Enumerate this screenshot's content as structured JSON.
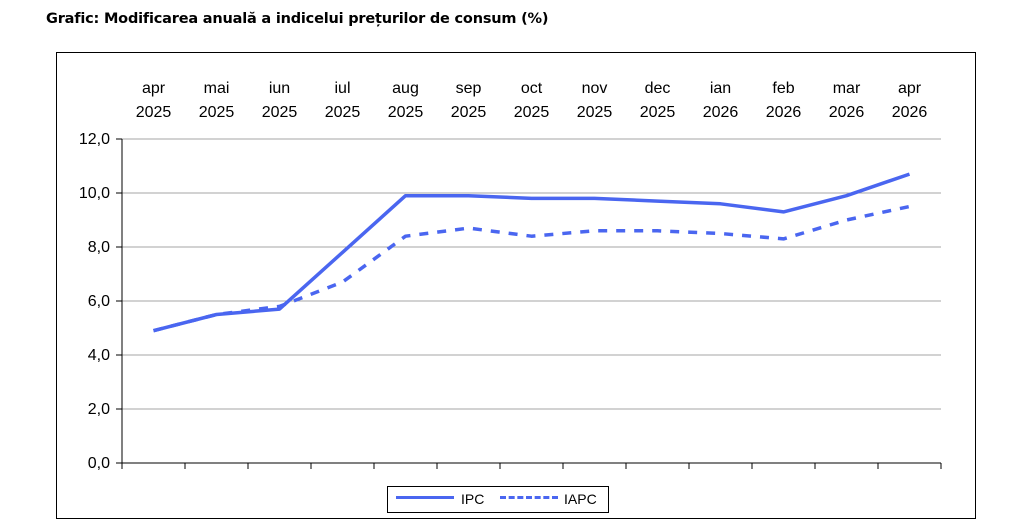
{
  "title": "Grafic: Modificarea anuală a indicelui prețurilor de consum (%)",
  "chart_data": {
    "type": "line",
    "categories": [
      [
        "apr",
        "2025"
      ],
      [
        "mai",
        "2025"
      ],
      [
        "iun",
        "2025"
      ],
      [
        "iul",
        "2025"
      ],
      [
        "aug",
        "2025"
      ],
      [
        "sep",
        "2025"
      ],
      [
        "oct",
        "2025"
      ],
      [
        "nov",
        "2025"
      ],
      [
        "dec",
        "2025"
      ],
      [
        "ian",
        "2026"
      ],
      [
        "feb",
        "2026"
      ],
      [
        "mar",
        "2026"
      ],
      [
        "apr",
        "2026"
      ]
    ],
    "yticks": [
      "0,0",
      "2,0",
      "4,0",
      "6,0",
      "8,0",
      "10,0",
      "12,0"
    ],
    "ylim": [
      0,
      12
    ],
    "xaxis_position": "top",
    "grid": true,
    "legend_position": "bottom-center",
    "series": [
      {
        "name": "IPC",
        "style": "solid",
        "color": "#4a66f0",
        "values": [
          4.9,
          5.5,
          5.7,
          7.8,
          9.9,
          9.9,
          9.8,
          9.8,
          9.7,
          9.6,
          9.3,
          9.9,
          10.7
        ]
      },
      {
        "name": "IAPC",
        "style": "dashed",
        "color": "#4a66f0",
        "values": [
          4.9,
          5.5,
          5.8,
          6.7,
          8.4,
          8.7,
          8.4,
          8.6,
          8.6,
          8.5,
          8.3,
          9.0,
          9.5
        ]
      }
    ]
  }
}
